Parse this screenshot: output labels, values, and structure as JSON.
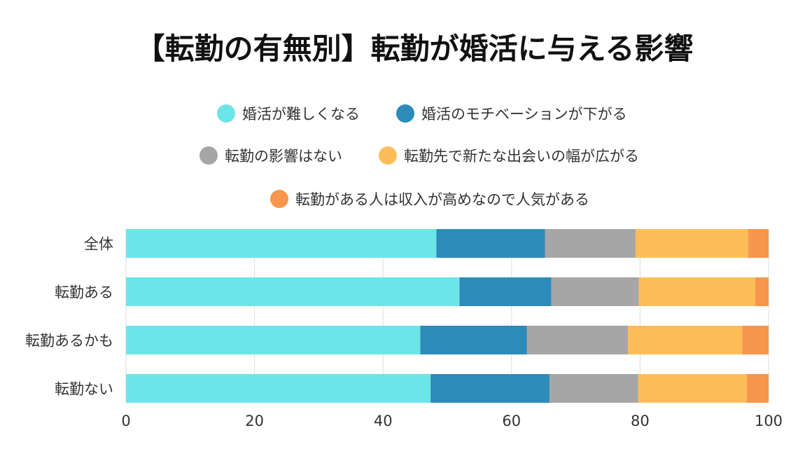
{
  "chart_data": {
    "type": "bar",
    "orientation": "horizontal",
    "stacked": true,
    "title": "【転勤の有無別】転勤が婚活に与える影響",
    "categories": [
      "全体",
      "転勤ある",
      "転勤あるかも",
      "転勤ない"
    ],
    "series": [
      {
        "name": "婚活が難しくなる",
        "color": "#6ce5e8",
        "values": [
          48.3,
          51.9,
          45.8,
          47.4
        ]
      },
      {
        "name": "婚活のモチベーションが下がる",
        "color": "#2d8bba",
        "values": [
          16.9,
          14.3,
          16.6,
          18.5
        ]
      },
      {
        "name": "転勤の影響はない",
        "color": "#a6a6a6",
        "values": [
          14.1,
          13.6,
          15.7,
          13.8
        ]
      },
      {
        "name": "転勤先で新たな出会いの幅が広がる",
        "color": "#ffbd59",
        "values": [
          17.5,
          18.1,
          17.8,
          16.9
        ]
      },
      {
        "name": "転勤がある人は収入が高めなので人気がある",
        "color": "#f7964d",
        "values": [
          3.2,
          2.1,
          4.1,
          3.4
        ]
      }
    ],
    "xlim": [
      0,
      100
    ],
    "xticks": [
      "0",
      "20",
      "40",
      "60",
      "80",
      "100"
    ],
    "xtick_values": [
      0,
      20,
      40,
      60,
      80,
      100
    ],
    "grid": true,
    "legend_position": "top"
  }
}
